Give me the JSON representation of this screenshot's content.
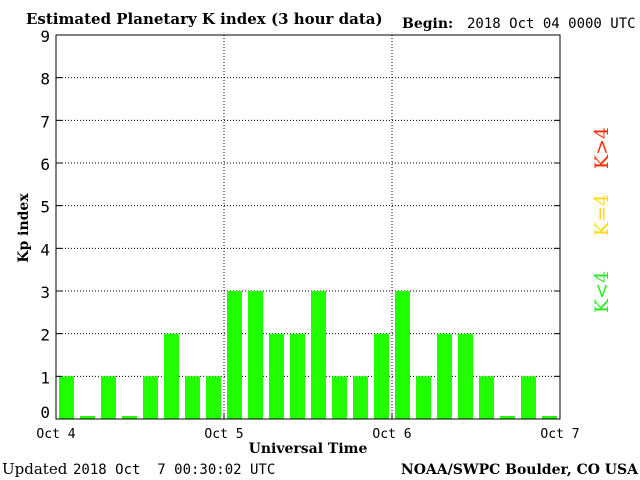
{
  "header": {
    "title": "Estimated Planetary K index (3 hour data)",
    "begin_label": "Begin:",
    "begin_value": "2018 Oct 04 0000 UTC"
  },
  "footer": {
    "updated_label": "Updated",
    "updated_value": "2018 Oct  7 00:30:02 UTC",
    "source": "NOAA/SWPC Boulder, CO USA"
  },
  "legend": [
    {
      "label": "K>4",
      "color": "#ff2a00"
    },
    {
      "label": "K=4",
      "color": "#ffdd00"
    },
    {
      "label": "K<4",
      "color": "#22ee22"
    }
  ],
  "colors": {
    "bar_low": "#22ff00",
    "bar_mid": "#ffdd00",
    "bar_high": "#ff2a00",
    "axis": "#000000",
    "background": "#ffffff"
  },
  "chart_data": {
    "type": "bar",
    "ylabel": "Kp index",
    "xlabel": "Universal Time",
    "ylim": [
      0,
      9
    ],
    "yticks": [
      0,
      1,
      2,
      3,
      4,
      5,
      6,
      7,
      8,
      9
    ],
    "xticks": [
      "Oct 4",
      "Oct 5",
      "Oct 6",
      "Oct 7"
    ],
    "grid": true,
    "legend_position": "right",
    "values": [
      1,
      0,
      1,
      0,
      1,
      2,
      1,
      1,
      3,
      3,
      2,
      2,
      3,
      1,
      1,
      2,
      3,
      1,
      2,
      2,
      1,
      0,
      1,
      0
    ]
  }
}
